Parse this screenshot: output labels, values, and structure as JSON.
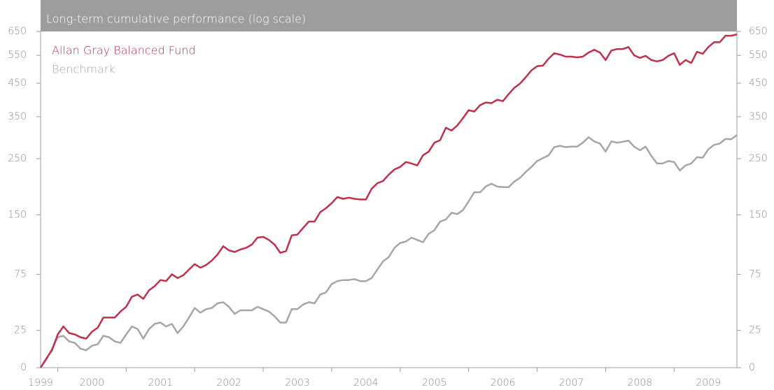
{
  "chart_data": {
    "type": "line",
    "title": "Long-term cumulative performance (log scale)",
    "categories": [
      "1999",
      null,
      null,
      null,
      null,
      null,
      null,
      null,
      null,
      "2000",
      null,
      null,
      null,
      null,
      null,
      null,
      null,
      null,
      null,
      null,
      null,
      "2001",
      null,
      null,
      null,
      null,
      null,
      null,
      null,
      null,
      null,
      null,
      null,
      "2002",
      null,
      null,
      null,
      null,
      null,
      null,
      null,
      null,
      null,
      null,
      null,
      "2003",
      null,
      null,
      null,
      null,
      null,
      null,
      null,
      null,
      null,
      null,
      null,
      "2004",
      null,
      null,
      null,
      null,
      null,
      null,
      null,
      null,
      null,
      null,
      null,
      "2005",
      null,
      null,
      null,
      null,
      null,
      null,
      null,
      null,
      null,
      null,
      null,
      "2006",
      null,
      null,
      null,
      null,
      null,
      null,
      null,
      null,
      null,
      null,
      null,
      "2007",
      null,
      null,
      null,
      null,
      null,
      null,
      null,
      null,
      null,
      null,
      null,
      "2008",
      null,
      null,
      null,
      null,
      null,
      null,
      null,
      null,
      null,
      null,
      null,
      "2009",
      null,
      null,
      null,
      null,
      null
    ],
    "series": [
      {
        "name": "Allan Gray Balanced Fund",
        "color": "#c0304a",
        "values": [
          0,
          5.6,
          11,
          22,
          28,
          23,
          22,
          20,
          19,
          24,
          27,
          35,
          35,
          35,
          40,
          44,
          53,
          55,
          51,
          59,
          63,
          69,
          68,
          75,
          71,
          74,
          80,
          86,
          82,
          85,
          90,
          97,
          107,
          102,
          100,
          103,
          105,
          109,
          118,
          119,
          115,
          109,
          99,
          101,
          121,
          122,
          131,
          140,
          140,
          154,
          160,
          168,
          178,
          175,
          177,
          175,
          174,
          174,
          192,
          202,
          206,
          218,
          228,
          233,
          243,
          240,
          236,
          257,
          265,
          285,
          291,
          321,
          314,
          327,
          346,
          368,
          364,
          382,
          390,
          388,
          398,
          394,
          415,
          435,
          449,
          470,
          494,
          509,
          511,
          537,
          558,
          553,
          545,
          545,
          542,
          545,
          561,
          572,
          561,
          532,
          569,
          575,
          575,
          583,
          550,
          540,
          548,
          532,
          527,
          532,
          548,
          558,
          514,
          532,
          521,
          564,
          556,
          583,
          603,
          603,
          631,
          631,
          637
        ]
      },
      {
        "name": "Benchmark",
        "color": "#a6a6a6",
        "values": [
          0,
          5,
          12,
          20,
          21,
          17,
          16,
          12,
          11,
          14,
          15,
          21,
          20,
          17,
          16,
          22,
          28,
          26,
          19,
          26,
          30,
          31,
          28,
          30,
          23,
          28,
          35,
          43,
          39,
          42,
          43,
          47,
          48,
          44,
          38,
          41,
          41,
          41,
          44,
          42,
          40,
          36,
          31,
          31,
          42,
          42,
          46,
          48,
          47,
          55,
          57,
          65,
          68,
          69,
          69,
          70,
          68,
          68,
          71,
          80,
          89,
          94,
          105,
          111,
          113,
          118,
          115,
          112,
          123,
          128,
          140,
          143,
          153,
          151,
          157,
          171,
          186,
          186,
          196,
          201,
          196,
          195,
          195,
          205,
          212,
          223,
          233,
          245,
          251,
          257,
          275,
          278,
          275,
          276,
          276,
          285,
          298,
          288,
          283,
          265,
          288,
          285,
          287,
          290,
          276,
          268,
          276,
          256,
          240,
          240,
          245,
          243,
          226,
          236,
          240,
          253,
          252,
          270,
          280,
          283,
          294,
          293,
          303
        ]
      }
    ],
    "ylim": [
      0,
      650
    ],
    "yticks": [
      0,
      25,
      75,
      150,
      250,
      350,
      450,
      550,
      650
    ],
    "log_scale": true
  }
}
